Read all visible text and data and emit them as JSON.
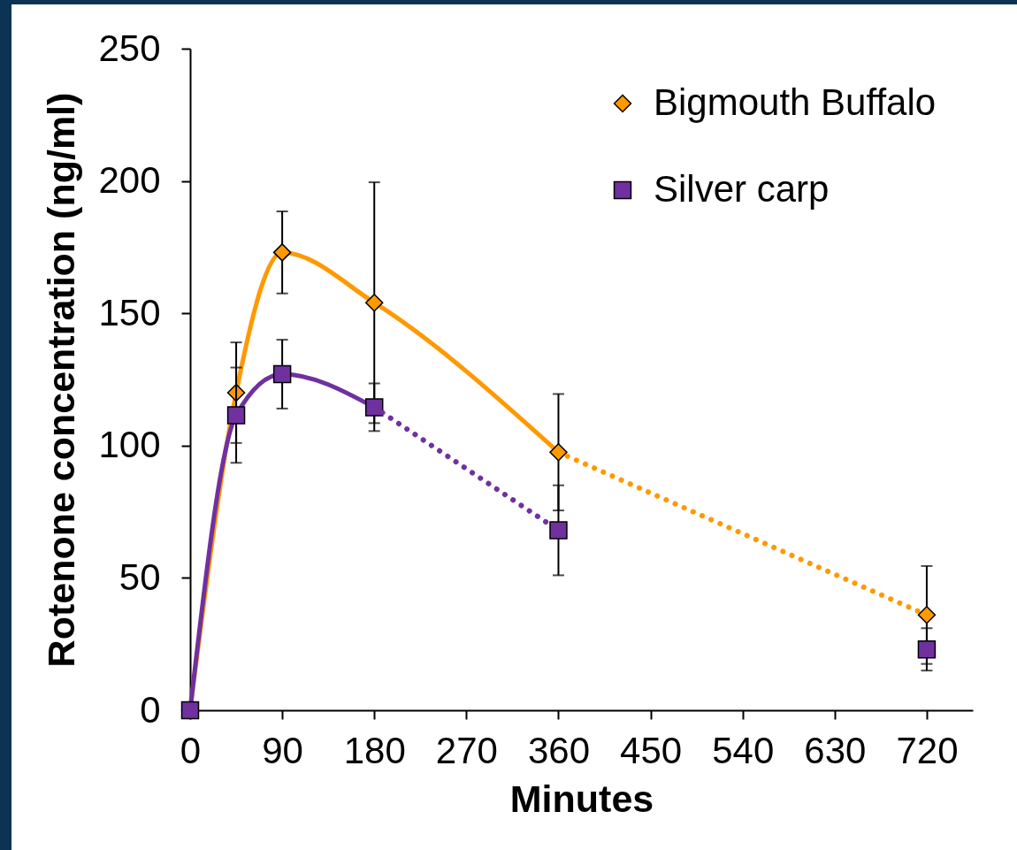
{
  "chart_data": {
    "type": "line",
    "xlabel": "Minutes",
    "ylabel": "Rotenone concentration (ng/ml)",
    "xlim": [
      0,
      765
    ],
    "xticks": [
      0,
      90,
      180,
      270,
      360,
      450,
      540,
      630,
      720
    ],
    "ylim": [
      0,
      250
    ],
    "yticks": [
      0,
      50,
      100,
      150,
      200,
      250
    ],
    "legend": "top right",
    "series": [
      {
        "name": "Bigmouth Buffalo",
        "type": "line",
        "color": "#ff9900",
        "marker": "diamond",
        "line_style": "solid",
        "x": [
          0,
          45,
          90,
          180,
          360
        ],
        "values": [
          0,
          120,
          173,
          154,
          97.5
        ],
        "errors": [
          null,
          19,
          15.5,
          45.5,
          22
        ]
      },
      {
        "type": "line",
        "color": "#ff9900",
        "marker": "none",
        "line_style": "dotted",
        "x": [
          360,
          720
        ],
        "values": [
          97.5,
          36
        ]
      },
      {
        "type": "scatter",
        "color": "#ff9900",
        "marker": "diamond",
        "x": [
          720
        ],
        "values": [
          36
        ],
        "errors": [
          18.5
        ]
      },
      {
        "name": "Silver carp",
        "type": "line",
        "color": "#7030a0",
        "marker": "square",
        "line_style": "solid",
        "x": [
          0,
          45,
          90,
          180
        ],
        "values": [
          0,
          111.5,
          127,
          114.5
        ],
        "errors": [
          null,
          18,
          13,
          9
        ]
      },
      {
        "type": "line",
        "color": "#7030a0",
        "marker": "none",
        "line_style": "dotted",
        "x": [
          180,
          360
        ],
        "values": [
          114.5,
          68
        ]
      },
      {
        "type": "scatter",
        "color": "#7030a0",
        "marker": "square",
        "x": [
          360,
          720
        ],
        "values": [
          68,
          23
        ],
        "errors": [
          17,
          8
        ]
      }
    ]
  }
}
